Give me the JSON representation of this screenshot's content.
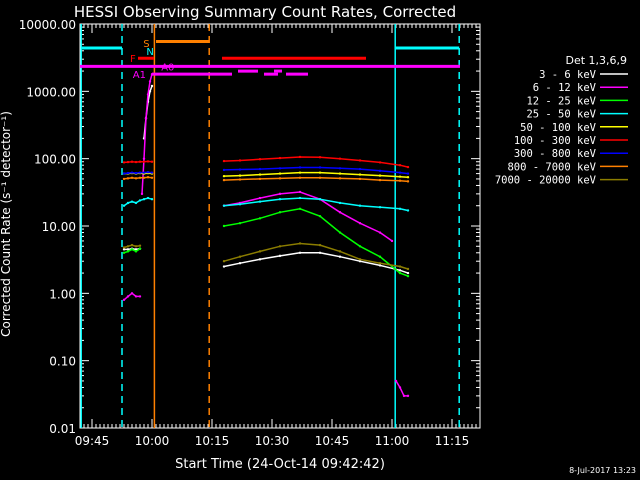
{
  "chart_data": {
    "type": "line",
    "title": "HESSI Observing Summary Count Rates, Corrected",
    "xlabel": "Start Time (24-Oct-14 09:42:42)",
    "ylabel": "Corrected Count Rate (s⁻¹ detector⁻¹)",
    "y_scale": "log",
    "ylim": [
      0.01,
      10000
    ],
    "xlim_minutes_after_0942": [
      0,
      100
    ],
    "x_tick_labels": [
      "09:45",
      "10:00",
      "10:15",
      "10:30",
      "10:45",
      "11:00",
      "11:15"
    ],
    "x_tick_minutes_after_0942": [
      3,
      18,
      33,
      48,
      63,
      78,
      93
    ],
    "y_tick_labels": [
      "0.01",
      "0.10",
      "1.00",
      "10.00",
      "100.00",
      "1000.00",
      "10000.00"
    ],
    "y_ticks": [
      0.01,
      0.1,
      1,
      10,
      100,
      1000,
      10000
    ],
    "legend_title": "Det 1,3,6,9",
    "legend_position": "right",
    "footer": "8-Jul-2017 13:23",
    "series": [
      {
        "name": "3 - 6 keV",
        "color": "#ffffff",
        "segments": [
          {
            "x": [
              11,
              12,
              13,
              14,
              15
            ],
            "y": [
              4.5,
              4.5,
              4.6,
              4.5,
              4.6
            ]
          },
          {
            "x": [
              16,
              16.5,
              17,
              17.5,
              18
            ],
            "y": [
              200,
              400,
              700,
              1000,
              1200
            ]
          },
          {
            "x": [
              36,
              40,
              45,
              50,
              55,
              60,
              65,
              70,
              75,
              80,
              82
            ],
            "y": [
              2.5,
              2.8,
              3.2,
              3.6,
              4.0,
              4.0,
              3.5,
              3.0,
              2.6,
              2.2,
              2.0
            ]
          }
        ]
      },
      {
        "name": "6 - 12 keV",
        "color": "#ff00ff",
        "segments": [
          {
            "x": [
              11,
              12,
              13,
              14,
              15
            ],
            "y": [
              0.8,
              0.9,
              1.0,
              0.9,
              0.9
            ]
          },
          {
            "x": [
              15.5,
              16,
              16.5,
              17,
              17.5,
              18
            ],
            "y": [
              30,
              100,
              400,
              900,
              1400,
              1800
            ]
          },
          {
            "x": [
              36,
              40,
              45,
              50,
              55,
              60,
              65,
              70,
              75,
              78
            ],
            "y": [
              20,
              22,
              26,
              30,
              32,
              25,
              16,
              11,
              8,
              6
            ]
          },
          {
            "x": [
              79,
              80,
              81,
              82
            ],
            "y": [
              0.05,
              0.04,
              0.03,
              0.03
            ]
          }
        ]
      },
      {
        "name": "12 - 25 keV",
        "color": "#00ff00",
        "segments": [
          {
            "x": [
              11,
              12,
              13,
              14,
              15
            ],
            "y": [
              4.0,
              4.2,
              4.5,
              4.2,
              4.6
            ]
          },
          {
            "x": [
              36,
              40,
              45,
              50,
              55,
              60,
              65,
              70,
              75,
              80,
              82
            ],
            "y": [
              10,
              11,
              13,
              16,
              18,
              14,
              8,
              5,
              3.5,
              2.0,
              1.8
            ]
          }
        ]
      },
      {
        "name": "25 - 50 keV",
        "color": "#00ffff",
        "segments": [
          {
            "x": [
              11,
              12,
              13,
              14,
              15,
              16,
              17,
              18
            ],
            "y": [
              20,
              22,
              23,
              22,
              24,
              25,
              26,
              25
            ]
          },
          {
            "x": [
              36,
              40,
              45,
              50,
              55,
              60,
              65,
              70,
              75,
              80,
              82
            ],
            "y": [
              20,
              21,
              23,
              25,
              26,
              25,
              22,
              20,
              19,
              18,
              17
            ]
          }
        ]
      },
      {
        "name": "50 - 100 keV",
        "color": "#ffff00",
        "segments": [
          {
            "x": [
              11,
              12,
              13,
              14,
              15,
              16,
              17,
              18
            ],
            "y": [
              60,
              60,
              61,
              60,
              61,
              60,
              61,
              60
            ]
          },
          {
            "x": [
              36,
              40,
              45,
              50,
              55,
              60,
              65,
              70,
              75,
              80,
              82
            ],
            "y": [
              55,
              56,
              58,
              60,
              62,
              62,
              60,
              58,
              56,
              54,
              53
            ]
          }
        ]
      },
      {
        "name": "100 - 300 keV",
        "color": "#ff0000",
        "segments": [
          {
            "x": [
              11,
              12,
              13,
              14,
              15,
              16,
              17,
              18
            ],
            "y": [
              88,
              89,
              90,
              89,
              90,
              90,
              91,
              90
            ]
          },
          {
            "x": [
              36,
              40,
              45,
              50,
              55,
              60,
              65,
              70,
              75,
              80,
              82
            ],
            "y": [
              92,
              94,
              98,
              102,
              106,
              105,
              100,
              94,
              88,
              80,
              75
            ]
          }
        ]
      },
      {
        "name": "300 - 800 keV",
        "color": "#0000ff",
        "segments": [
          {
            "x": [
              11,
              12,
              13,
              14,
              15,
              16,
              17,
              18
            ],
            "y": [
              60,
              61,
              62,
              61,
              62,
              62,
              63,
              62
            ]
          },
          {
            "x": [
              36,
              40,
              45,
              50,
              55,
              60,
              65,
              70,
              75,
              80,
              82
            ],
            "y": [
              68,
              69,
              70,
              72,
              74,
              74,
              72,
              70,
              66,
              62,
              60
            ]
          }
        ]
      },
      {
        "name": "800 - 7000 keV",
        "color": "#ff8000",
        "segments": [
          {
            "x": [
              11,
              12,
              13,
              14,
              15,
              16,
              17,
              18
            ],
            "y": [
              50,
              51,
              52,
              51,
              52,
              52,
              53,
              52
            ]
          },
          {
            "x": [
              36,
              40,
              45,
              50,
              55,
              60,
              65,
              70,
              75,
              80,
              82
            ],
            "y": [
              48,
              49,
              50,
              51,
              52,
              52,
              51,
              50,
              48,
              47,
              46
            ]
          }
        ]
      },
      {
        "name": "7000 - 20000 keV",
        "color": "#8b7d00",
        "segments": [
          {
            "x": [
              11,
              12,
              13,
              14,
              15
            ],
            "y": [
              4.8,
              5.0,
              5.2,
              5.0,
              5.1
            ]
          },
          {
            "x": [
              36,
              40,
              45,
              50,
              55,
              60,
              65,
              70,
              75,
              80,
              82
            ],
            "y": [
              3.0,
              3.5,
              4.2,
              5.0,
              5.5,
              5.2,
              4.2,
              3.2,
              2.8,
              2.5,
              2.3
            ]
          }
        ]
      }
    ],
    "vertical_lines": [
      {
        "x": 0.3,
        "color": "#00ffff",
        "style": "solid"
      },
      {
        "x": 10.5,
        "color": "#00ffff",
        "style": "dashed"
      },
      {
        "x": 18.6,
        "color": "#ff8000",
        "style": "solid"
      },
      {
        "x": 32.3,
        "color": "#ff8000",
        "style": "dashed"
      },
      {
        "x": 78.8,
        "color": "#00ffff",
        "style": "solid"
      },
      {
        "x": 94.8,
        "color": "#00ffff",
        "style": "dashed"
      }
    ],
    "flag_bars": [
      {
        "label": "",
        "color": "#00ffff",
        "y": 4400,
        "ranges": [
          [
            0.3,
            10.5
          ],
          [
            78.8,
            94.8
          ]
        ]
      },
      {
        "label": "",
        "color": "#ff8000",
        "y": 5500,
        "ranges": [
          [
            19,
            32.3
          ]
        ]
      },
      {
        "label": "",
        "color": "#ff0000",
        "y": 3100,
        "ranges": [
          [
            14.5,
            18.5
          ],
          [
            35.5,
            71.5
          ]
        ]
      },
      {
        "label": "",
        "color": "#ff00ff",
        "y": 2350,
        "ranges": [
          [
            0,
            95
          ]
        ]
      },
      {
        "label": "",
        "color": "#ff00ff",
        "y": 2000,
        "ranges": [
          [
            39.5,
            44.5
          ],
          [
            48.5,
            50.5
          ]
        ]
      },
      {
        "label": "",
        "color": "#ff00ff",
        "y": 1800,
        "ranges": [
          [
            18,
            38
          ],
          [
            46,
            49.5
          ],
          [
            51.5,
            57
          ]
        ]
      }
    ],
    "flag_labels": [
      {
        "text": "S",
        "color": "#ff8000",
        "x": 15.8,
        "y": 5200
      },
      {
        "text": "N",
        "color": "#00ffff",
        "x": 16.6,
        "y": 4000
      },
      {
        "text": "F",
        "color": "#ff0000",
        "x": 12.5,
        "y": 3100
      },
      {
        "text": "A0",
        "color": "#ff00ff",
        "x": 20.3,
        "y": 2350
      },
      {
        "text": "A1",
        "color": "#ff00ff",
        "x": 13.2,
        "y": 1800
      }
    ]
  }
}
